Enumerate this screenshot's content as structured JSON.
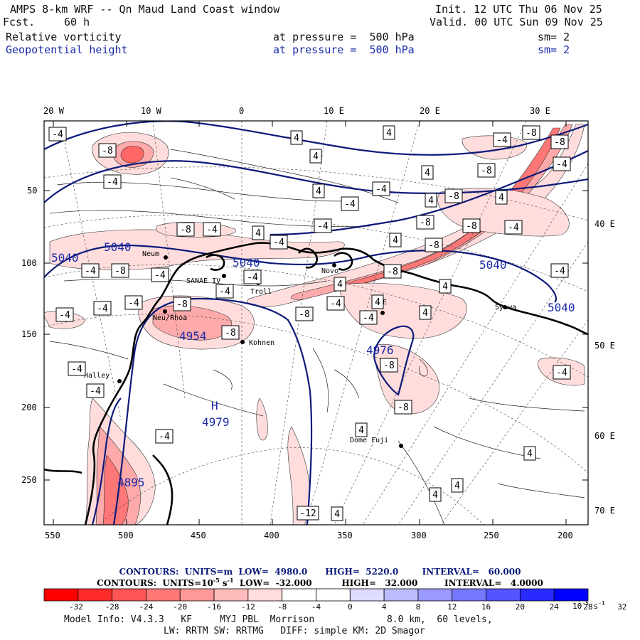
{
  "header": {
    "title": "AMPS 8-km WRF -- Qn Maud Land Coast window",
    "forecast_label": "Fcst.",
    "forecast_value": "60 h",
    "init": "Init. 12 UTC Thu 06 Nov 25",
    "valid": "Valid. 00 UTC Sun 09 Nov 25",
    "field1_name": "Relative vorticity",
    "field1_level": "at pressure =  500 hPa",
    "field1_smooth": "sm= 2",
    "field2_name": "Geopotential height",
    "field2_level": "at pressure =  500 hPa",
    "field2_smooth": "sm= 2"
  },
  "axes": {
    "top_lon_labels": [
      "20 W",
      "10 W",
      "0",
      "10 E",
      "20 E",
      "30 E"
    ],
    "left_labels": [
      "50",
      "100",
      "150",
      "200",
      "250"
    ],
    "bottom_labels": [
      "550",
      "500",
      "450",
      "400",
      "350",
      "300",
      "250",
      "200"
    ],
    "right_lon_labels": [
      "40 E",
      "50 E",
      "60 E",
      "70 E"
    ]
  },
  "stations": [
    "Neum",
    "SANAE IV",
    "Troll",
    "Novo",
    "Syowa",
    "PE",
    "Kohnen",
    "Halley",
    "Dome Fuji",
    "Neu/Rhoa"
  ],
  "height_labels": [
    "5040",
    "5040",
    "5040",
    "5040",
    "5040",
    "4954",
    "4976",
    "4979",
    "4895"
  ],
  "pressure_centers": [
    {
      "type": "H",
      "value": "4979"
    }
  ],
  "vorticity_boxes": [
    "4",
    "4",
    "4",
    "4",
    "4",
    "4",
    "4",
    "4",
    "4",
    "4",
    "4",
    "4",
    "4",
    "4",
    "4",
    "4",
    "4",
    "4",
    "-4",
    "-4",
    "-4",
    "-4",
    "-4",
    "-4",
    "-4",
    "-4",
    "-4",
    "-4",
    "-4",
    "-4",
    "-4",
    "-4",
    "-4",
    "-4",
    "-4",
    "-4",
    "-4",
    "-4",
    "-4",
    "-4",
    "-4",
    "-4",
    "-8",
    "-8",
    "-8",
    "-8",
    "-8",
    "-8",
    "-8",
    "-8",
    "-8",
    "-8",
    "-8",
    "-8",
    "-8",
    "-8",
    "-8",
    "-8",
    "-12"
  ],
  "contours_height": {
    "label": "CONTOURS:  UNITS=m  LOW=  4980.0      HIGH=  5220.0        INTERVAL=   60.000"
  },
  "contours_vort": {
    "label_a": "CONTOURS:  UNITS=10",
    "exp": "-5",
    "label_b": " s",
    "exp2": "-1",
    "label_c": "  LOW=  -32.000          HIGH=   32.000         INTERVAL=   4.0000"
  },
  "colorbar": {
    "colors": [
      "#ff0000",
      "#ff2a2a",
      "#ff5555",
      "#ff7777",
      "#ff9999",
      "#ffbbbb",
      "#ffdddd",
      "#ffffff",
      "#ffffff",
      "#ddddff",
      "#bbbbff",
      "#9999ff",
      "#7777ff",
      "#5555ff",
      "#2a2aff",
      "#0000ff"
    ],
    "ticks": [
      "-32",
      "-28",
      "-24",
      "-20",
      "-16",
      "-12",
      "-8",
      "-4",
      "0",
      "4",
      "8",
      "12",
      "16",
      "20",
      "24",
      "28",
      "32"
    ],
    "unit": "10",
    "unit_exp": "-5",
    "unit_s": " s",
    "unit_s_exp": "-1"
  },
  "model_info": {
    "line1": "Model Info: V4.3.3   KF     MYJ PBL  Morrison             8.0 km,  60 levels,",
    "line2": "LW: RRTM SW: RRTMG   DIFF: simple KM: 2D Smagor"
  },
  "colors": {
    "height_contour": "#0c1a7a",
    "coast": "#000000",
    "vort_light": "#ffdddd",
    "vort_mid": "#ffaaaa",
    "vort_strong": "#ff6666"
  }
}
